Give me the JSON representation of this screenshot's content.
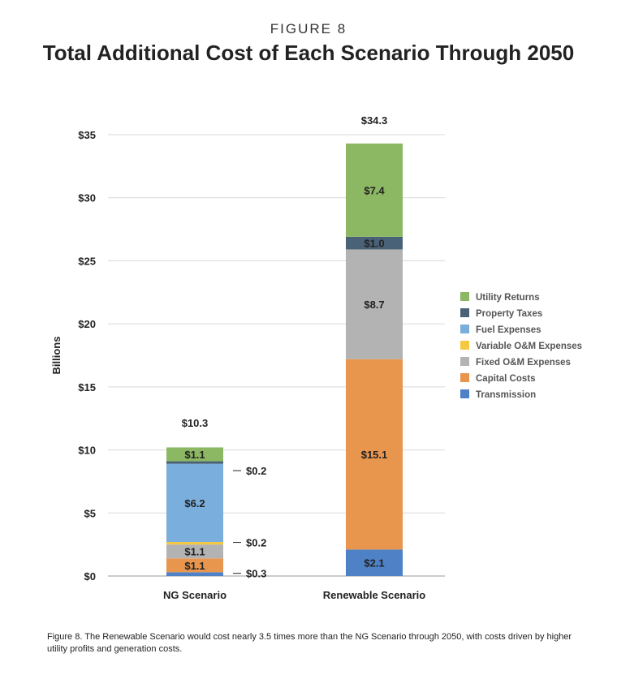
{
  "figure_label": "FIGURE 8",
  "caption": "Figure 8. The Renewable Scenario would cost nearly 3.5 times more than the NG Scenario through 2050, with costs driven by higher utility profits and generation costs.",
  "chart_data": {
    "type": "bar",
    "stacked": true,
    "title": "Total Additional Cost of Each Scenario Through 2050",
    "ylabel": "Billions",
    "xlabel": "",
    "ylim": [
      0,
      35
    ],
    "yticks": [
      0,
      5,
      10,
      15,
      20,
      25,
      30,
      35
    ],
    "ytick_labels": [
      "$0",
      "$5",
      "$10",
      "$15",
      "$20",
      "$25",
      "$30",
      "$35"
    ],
    "grid": true,
    "legend_position": "right",
    "categories": [
      "NG Scenario",
      "Renewable Scenario"
    ],
    "totals": [
      10.3,
      34.3
    ],
    "total_labels": [
      "$10.3",
      "$34.3"
    ],
    "series": [
      {
        "name": "Transmission",
        "color": "#4f81c7",
        "values": [
          0.3,
          2.1
        ],
        "labels": [
          "$0.3",
          "$2.1"
        ]
      },
      {
        "name": "Capital Costs",
        "color": "#e8954e",
        "values": [
          1.1,
          15.1
        ],
        "labels": [
          "$1.1",
          "$15.1"
        ]
      },
      {
        "name": "Fixed O&M Expenses",
        "color": "#b3b3b3",
        "values": [
          1.1,
          8.7
        ],
        "labels": [
          "$1.1",
          "$8.7"
        ]
      },
      {
        "name": "Variable O&M Expenses",
        "color": "#f5c842",
        "values": [
          0.2,
          0.0
        ],
        "labels": [
          "$0.2",
          ""
        ]
      },
      {
        "name": "Fuel Expenses",
        "color": "#7aaedc",
        "values": [
          6.2,
          0.0
        ],
        "labels": [
          "$6.2",
          ""
        ]
      },
      {
        "name": "Property Taxes",
        "color": "#4a6278",
        "values": [
          0.2,
          1.0
        ],
        "labels": [
          "$0.2",
          "$1.0"
        ]
      },
      {
        "name": "Utility Returns",
        "color": "#8db863",
        "values": [
          1.1,
          7.4
        ],
        "labels": [
          "$1.1",
          "$7.4"
        ]
      }
    ],
    "legend_order": [
      "Utility Returns",
      "Property Taxes",
      "Fuel Expenses",
      "Variable O&M Expenses",
      "Fixed O&M Expenses",
      "Capital Costs",
      "Transmission"
    ]
  }
}
